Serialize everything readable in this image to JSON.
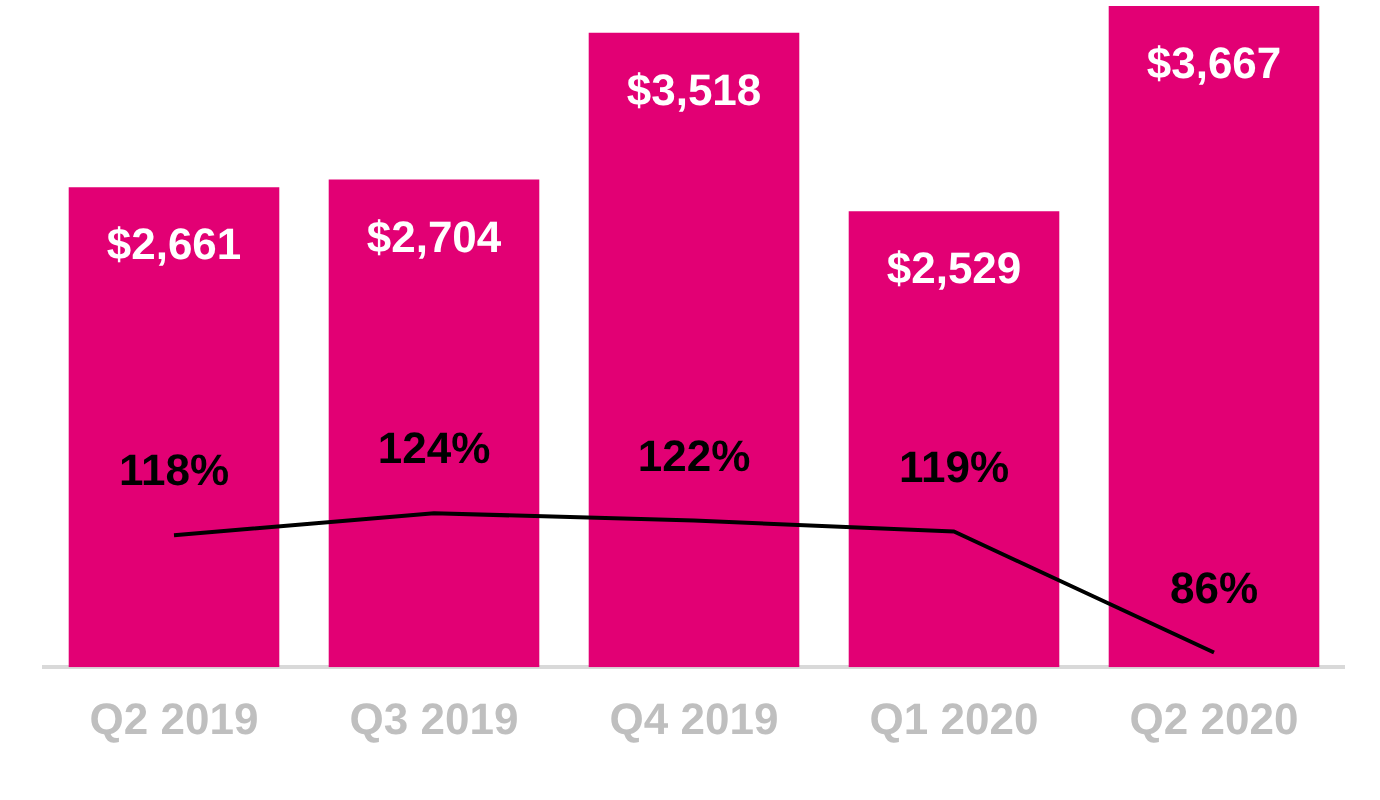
{
  "chart_data": {
    "type": "bar",
    "categories": [
      "Q2 2019",
      "Q3 2019",
      "Q4 2019",
      "Q1 2020",
      "Q2 2020"
    ],
    "series": [
      {
        "color": "#e20074",
        "values": [
          2661,
          2704,
          3518,
          2529,
          3667
        ],
        "value_labels": [
          "$2,661",
          "$2,704",
          "$3,518",
          "$2,529",
          "$3,667"
        ]
      },
      {
        "type": "line",
        "axis": "y2",
        "color": "#000000",
        "values": [
          118,
          124,
          122,
          119,
          86
        ],
        "value_labels": [
          "118%",
          "124%",
          "122%",
          "119%",
          "86%"
        ]
      }
    ],
    "ylim": [
      0,
      3700
    ],
    "y2lim": [
      82,
      264
    ],
    "tick_labels": "x",
    "legend": false,
    "grid": false,
    "marker": "none",
    "line_style": "solid"
  }
}
